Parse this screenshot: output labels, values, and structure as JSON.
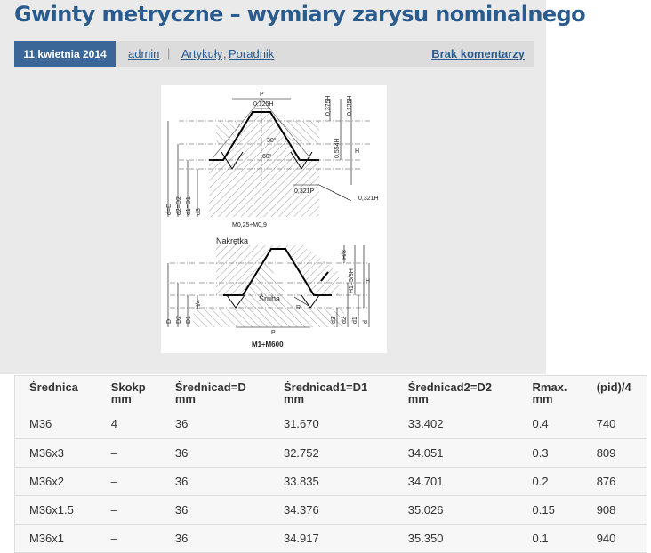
{
  "post": {
    "title": "Gwinty metryczne – wymiary zarysu nominalnego",
    "date": "11 kwietnia 2014",
    "author": "admin",
    "categories": [
      "Artykuły",
      "Poradnik"
    ],
    "category_sep": ",",
    "comments": "Brak komentarzy"
  },
  "figure": {
    "label_p_top": "P",
    "label_0125h_top": "0,125H",
    "label_0375h": "0,375H",
    "label_0125h_side": "0,125H",
    "label_0554h": "0,554H",
    "label_h_top": "H",
    "label_30": "30°",
    "label_60": "60°",
    "label_0321p": "0,321P",
    "label_0321h": "0,321H",
    "label_d_eq_D": "d=D",
    "label_d2_eq_D2": "d2=D2",
    "label_d1_eq_D1": "d1=D1",
    "label_d3": "d3",
    "label_tolerance": "M0,25÷M0,9",
    "label_nut": "Nakrętka",
    "label_screw": "Śruba",
    "label_h8": "H/8",
    "label_h1": "H1=5/8H",
    "label_h_bottom": "H",
    "label_h4": "H/4",
    "label_r": "R",
    "label_p_bottom": "P",
    "label_D": "D",
    "label_D2": "D2",
    "label_D1": "D1",
    "label_d3b": "d3",
    "label_d2b": "d2",
    "label_d1b": "d1",
    "label_db": "d",
    "caption": "M1÷M600"
  },
  "table": {
    "headers": [
      [
        "Średnica",
        ""
      ],
      [
        "Skokp",
        "mm"
      ],
      [
        "Średnicad=D",
        "mm"
      ],
      [
        "Średnicad1=D1",
        "mm"
      ],
      [
        "Średnicad2=D2",
        "mm"
      ],
      [
        "Rmax.",
        "mm"
      ],
      [
        "(pid)/4",
        ""
      ]
    ],
    "rows": [
      [
        "M36",
        "4",
        "36",
        "31.670",
        "33.402",
        "0.4",
        "740"
      ],
      [
        "M36x3",
        "–",
        "36",
        "32.752",
        "34.051",
        "0.3",
        "809"
      ],
      [
        "M36x2",
        "–",
        "36",
        "33.835",
        "34.701",
        "0.2",
        "876"
      ],
      [
        "M36x1.5",
        "–",
        "36",
        "34.376",
        "35.026",
        "0.15",
        "908"
      ],
      [
        "M36x1",
        "–",
        "36",
        "34.917",
        "35.350",
        "0.1",
        "940"
      ]
    ]
  }
}
